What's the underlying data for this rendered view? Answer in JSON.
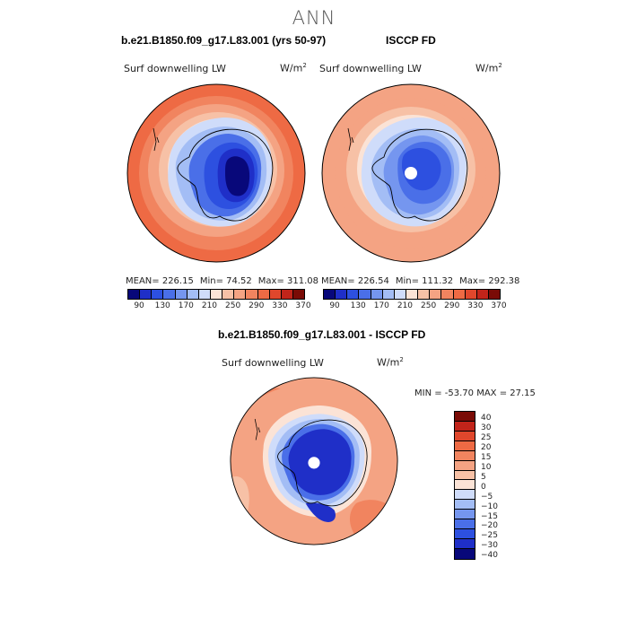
{
  "figure": {
    "title": "ANN"
  },
  "panels": [
    {
      "title": "b.e21.B1850.f09_g17.L83.001 (yrs 50-97)",
      "variable": "Surf downwelling LW",
      "units": "W/m",
      "units_exp": "2",
      "stats": {
        "mean": "MEAN= 226.15",
        "min": "Min= 74.52",
        "max": "Max= 311.08"
      }
    },
    {
      "title": "ISCCP FD",
      "variable": "Surf downwelling LW",
      "units": "W/m",
      "units_exp": "2",
      "stats": {
        "mean": "MEAN= 226.54",
        "min": "Min= 111.32",
        "max": "Max= 292.38"
      }
    },
    {
      "title": "b.e21.B1850.f09_g17.L83.001 - ISCCP FD",
      "variable": "Surf downwelling LW",
      "units": "W/m",
      "units_exp": "2",
      "stats": {
        "minmax": "MIN = -53.70  MAX =  27.15"
      }
    }
  ],
  "colorbar_abs": {
    "ticks": [
      "90",
      "130",
      "170",
      "210",
      "250",
      "290",
      "330",
      "370"
    ],
    "colors": [
      "#08087a",
      "#1f2fc8",
      "#2d50e0",
      "#4a6fe8",
      "#7596ef",
      "#a3bdf5",
      "#cfdcfa",
      "#fbe3d6",
      "#f7c1a6",
      "#f4a383",
      "#f1845f",
      "#ee6a44",
      "#e0472c",
      "#c1241a",
      "#7a0b06"
    ]
  },
  "colorbar_diff": {
    "ticks": [
      "40",
      "30",
      "25",
      "20",
      "15",
      "10",
      "5",
      "0",
      "−5",
      "−10",
      "−15",
      "−20",
      "−25",
      "−30",
      "−40"
    ],
    "colors": [
      "#7a0b06",
      "#c1241a",
      "#e0472c",
      "#ee6a44",
      "#f1845f",
      "#f4a383",
      "#f7c1a6",
      "#fbe3d6",
      "#cfdcfa",
      "#a3bdf5",
      "#7596ef",
      "#4a6fe8",
      "#2d50e0",
      "#1f2fc8",
      "#08087a"
    ]
  }
}
